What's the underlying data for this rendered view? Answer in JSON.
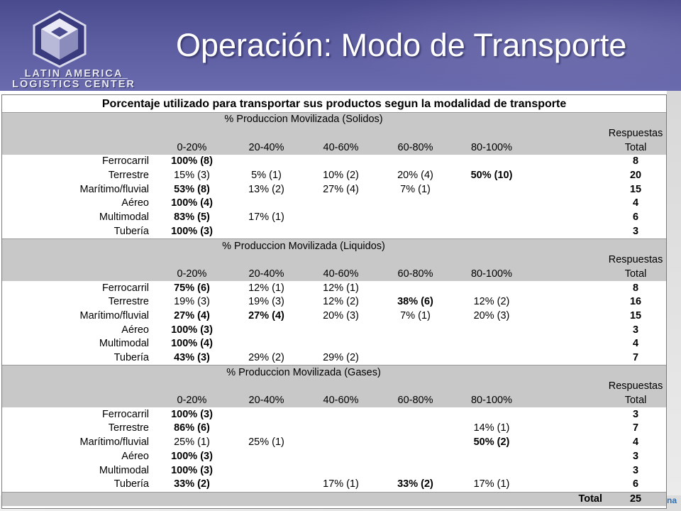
{
  "header": {
    "title": "Operación: Modo de Transporte",
    "logo_line1": "LATIN AMERICA",
    "logo_line2": "LOGISTICS CENTER"
  },
  "table": {
    "title": "Porcentaje utilizado para transportar sus productos segun la modalidad de transporte",
    "column_headers": [
      "0-20%",
      "20-40%",
      "40-60%",
      "60-80%",
      "80-100%"
    ],
    "resp_header_line1": "Respuestas",
    "resp_header_line2": "Total",
    "sections": [
      {
        "title": "% Produccion Movilizada (Solidos)",
        "rows": [
          {
            "label": "Ferrocarril",
            "cells": [
              {
                "text": "100% (8)",
                "bold": true
              },
              {
                "text": ""
              },
              {
                "text": ""
              },
              {
                "text": ""
              },
              {
                "text": ""
              }
            ],
            "total": "8"
          },
          {
            "label": "Terrestre",
            "cells": [
              {
                "text": "15% (3)"
              },
              {
                "text": "5% (1)"
              },
              {
                "text": "10% (2)"
              },
              {
                "text": "20% (4)"
              },
              {
                "text": "50% (10)",
                "bold": true
              }
            ],
            "total": "20"
          },
          {
            "label": "Marítimo/fluvial",
            "cells": [
              {
                "text": "53% (8)",
                "bold": true
              },
              {
                "text": "13% (2)"
              },
              {
                "text": "27% (4)"
              },
              {
                "text": "7% (1)"
              },
              {
                "text": ""
              }
            ],
            "total": "15"
          },
          {
            "label": "Aéreo",
            "cells": [
              {
                "text": "100% (4)",
                "bold": true
              },
              {
                "text": ""
              },
              {
                "text": ""
              },
              {
                "text": ""
              },
              {
                "text": ""
              }
            ],
            "total": "4"
          },
          {
            "label": "Multimodal",
            "cells": [
              {
                "text": "83% (5)",
                "bold": true
              },
              {
                "text": "17% (1)"
              },
              {
                "text": ""
              },
              {
                "text": ""
              },
              {
                "text": ""
              }
            ],
            "total": "6"
          },
          {
            "label": "Tubería",
            "cells": [
              {
                "text": "100% (3)",
                "bold": true
              },
              {
                "text": ""
              },
              {
                "text": ""
              },
              {
                "text": ""
              },
              {
                "text": ""
              }
            ],
            "total": "3"
          }
        ]
      },
      {
        "title": "% Produccion Movilizada (Liquidos)",
        "rows": [
          {
            "label": "Ferrocarril",
            "cells": [
              {
                "text": "75% (6)",
                "bold": true
              },
              {
                "text": "12% (1)"
              },
              {
                "text": "12% (1)"
              },
              {
                "text": ""
              },
              {
                "text": ""
              }
            ],
            "total": "8"
          },
          {
            "label": "Terrestre",
            "cells": [
              {
                "text": "19% (3)"
              },
              {
                "text": "19% (3)"
              },
              {
                "text": "12% (2)"
              },
              {
                "text": "38% (6)",
                "bold": true
              },
              {
                "text": "12% (2)"
              }
            ],
            "total": "16"
          },
          {
            "label": "Marítimo/fluvial",
            "cells": [
              {
                "text": "27% (4)",
                "bold": true
              },
              {
                "text": "27% (4)",
                "bold": true
              },
              {
                "text": "20% (3)"
              },
              {
                "text": "7% (1)"
              },
              {
                "text": "20% (3)"
              }
            ],
            "total": "15"
          },
          {
            "label": "Aéreo",
            "cells": [
              {
                "text": "100% (3)",
                "bold": true
              },
              {
                "text": ""
              },
              {
                "text": ""
              },
              {
                "text": ""
              },
              {
                "text": ""
              }
            ],
            "total": "3"
          },
          {
            "label": "Multimodal",
            "cells": [
              {
                "text": "100% (4)",
                "bold": true
              },
              {
                "text": ""
              },
              {
                "text": ""
              },
              {
                "text": ""
              },
              {
                "text": ""
              }
            ],
            "total": "4"
          },
          {
            "label": "Tubería",
            "cells": [
              {
                "text": "43% (3)",
                "bold": true
              },
              {
                "text": "29% (2)"
              },
              {
                "text": "29% (2)"
              },
              {
                "text": ""
              },
              {
                "text": ""
              }
            ],
            "total": "7"
          }
        ]
      },
      {
        "title": "% Produccion Movilizada (Gases)",
        "rows": [
          {
            "label": "Ferrocarril",
            "cells": [
              {
                "text": "100% (3)",
                "bold": true
              },
              {
                "text": ""
              },
              {
                "text": ""
              },
              {
                "text": ""
              },
              {
                "text": ""
              }
            ],
            "total": "3"
          },
          {
            "label": "Terrestre",
            "cells": [
              {
                "text": "86% (6)",
                "bold": true
              },
              {
                "text": ""
              },
              {
                "text": ""
              },
              {
                "text": ""
              },
              {
                "text": "14% (1)"
              }
            ],
            "total": "7"
          },
          {
            "label": "Marítimo/fluvial",
            "cells": [
              {
                "text": "25% (1)"
              },
              {
                "text": "25% (1)"
              },
              {
                "text": ""
              },
              {
                "text": ""
              },
              {
                "text": "50% (2)",
                "bold": true
              }
            ],
            "total": "4"
          },
          {
            "label": "Aéreo",
            "cells": [
              {
                "text": "100% (3)",
                "bold": true
              },
              {
                "text": ""
              },
              {
                "text": ""
              },
              {
                "text": ""
              },
              {
                "text": ""
              }
            ],
            "total": "3"
          },
          {
            "label": "Multimodal",
            "cells": [
              {
                "text": "100% (3)",
                "bold": true
              },
              {
                "text": ""
              },
              {
                "text": ""
              },
              {
                "text": ""
              },
              {
                "text": ""
              }
            ],
            "total": "3"
          },
          {
            "label": "Tubería",
            "cells": [
              {
                "text": "33% (2)",
                "bold": true
              },
              {
                "text": ""
              },
              {
                "text": "17% (1)"
              },
              {
                "text": "33% (2)",
                "bold": true
              },
              {
                "text": "17% (1)"
              }
            ],
            "total": "6"
          }
        ]
      }
    ],
    "footer_label": "Total",
    "footer_total": "25"
  },
  "footer": {
    "corner_text": "na"
  },
  "colors": {
    "header_bg": "#5b5ba0",
    "grey_band": "#c8c8c8",
    "title_text": "#ffffff"
  }
}
